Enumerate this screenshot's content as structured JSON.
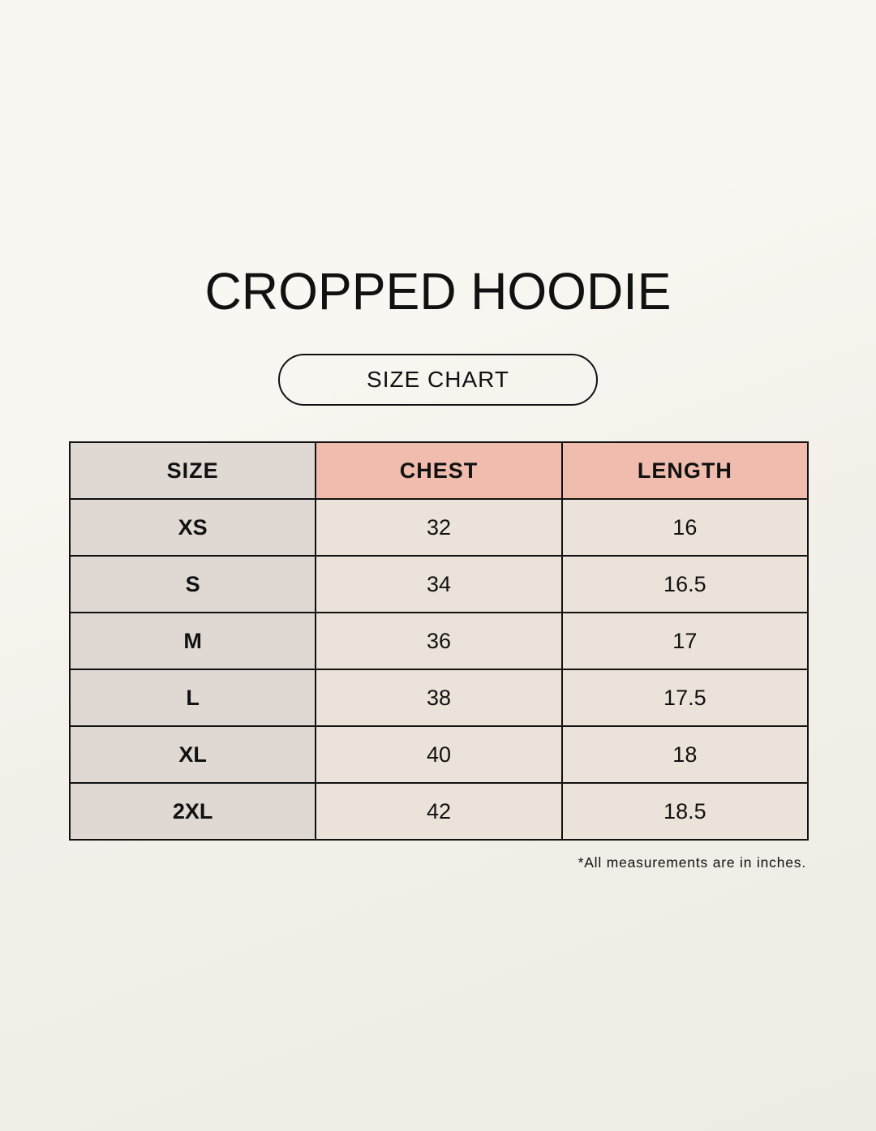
{
  "title": "CROPPED HOODIE",
  "subtitle": "SIZE CHART",
  "colors": {
    "size_column": "#e0d8d3",
    "header_highlight": "#efbcae",
    "value_cells": "#ebe3d9",
    "border": "#111111"
  },
  "table": {
    "headers": [
      "SIZE",
      "CHEST",
      "LENGTH"
    ],
    "rows": [
      [
        "XS",
        "32",
        "16"
      ],
      [
        "S",
        "34",
        "16.5"
      ],
      [
        "M",
        "36",
        "17"
      ],
      [
        "L",
        "38",
        "17.5"
      ],
      [
        "XL",
        "40",
        "18"
      ],
      [
        "2XL",
        "42",
        "18.5"
      ]
    ]
  },
  "footnote": "*All measurements are in inches."
}
